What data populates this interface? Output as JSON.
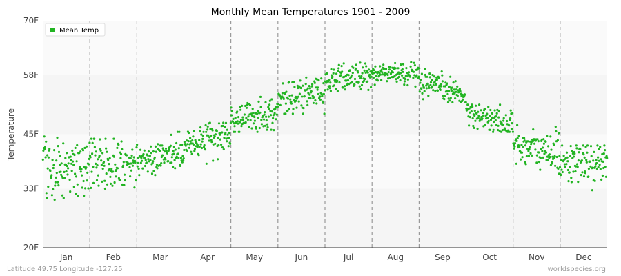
{
  "chart_data": {
    "type": "scatter",
    "title": "Monthly Mean Temperatures 1901 - 2009",
    "xlabel": "",
    "ylabel": "Temperature",
    "categories": [
      "Jan",
      "Feb",
      "Mar",
      "Apr",
      "May",
      "Jun",
      "Jul",
      "Aug",
      "Sep",
      "Oct",
      "Nov",
      "Dec"
    ],
    "yticks": [
      {
        "value": 20,
        "label": "20F"
      },
      {
        "value": 33,
        "label": "33F"
      },
      {
        "value": 45,
        "label": "45F"
      },
      {
        "value": 58,
        "label": "58F"
      },
      {
        "value": 70,
        "label": "70F"
      }
    ],
    "ylim": [
      20,
      70
    ],
    "legend": {
      "label": "Mean Temp",
      "position": "top-left"
    },
    "grid": "dashed vertical month separators, alternating horizontal bands",
    "series": [
      {
        "name": "Mean Temp",
        "color": "#22b422",
        "years": 109,
        "monthly_mean": [
          38.0,
          38.5,
          40.0,
          43.5,
          49.0,
          53.5,
          57.5,
          58.5,
          55.0,
          48.5,
          41.5,
          38.5
        ],
        "monthly_spread": [
          3.5,
          2.5,
          1.8,
          1.8,
          1.8,
          1.8,
          1.6,
          1.3,
          1.5,
          1.5,
          2.3,
          2.2
        ],
        "monthly_min": [
          26.5,
          33.0,
          36.0,
          38.0,
          45.5,
          49.5,
          54.5,
          55.5,
          52.0,
          45.5,
          33.5,
          32.5
        ],
        "monthly_max": [
          44.5,
          44.0,
          45.5,
          47.5,
          53.5,
          57.5,
          61.5,
          61.5,
          59.5,
          51.5,
          47.0,
          42.5
        ]
      }
    ]
  },
  "footer": {
    "left": "Latitude 49.75 Longitude -127.25",
    "right": "worldspecies.org"
  }
}
